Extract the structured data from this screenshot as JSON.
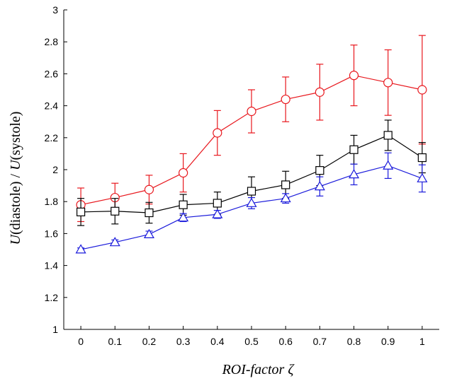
{
  "chart_data": {
    "type": "line",
    "title": "",
    "xlabel": "ROI-factor ζ",
    "ylabel": "U(diastole) / U(systole)",
    "xlim": [
      -0.05,
      1.05
    ],
    "ylim": [
      1,
      3
    ],
    "x": [
      0,
      0.1,
      0.2,
      0.3,
      0.4,
      0.5,
      0.6,
      0.7,
      0.8,
      0.9,
      1
    ],
    "x_ticks": [
      "0",
      "0.1",
      "0.2",
      "0.3",
      "0.4",
      "0.5",
      "0.6",
      "0.7",
      "0.8",
      "0.9",
      "1"
    ],
    "y_ticks": [
      "1",
      "1.2",
      "1.4",
      "1.6",
      "1.8",
      "2",
      "2.2",
      "2.4",
      "2.6",
      "2.8",
      "3"
    ],
    "y_tick_values": [
      1,
      1.2,
      1.4,
      1.6,
      1.8,
      2,
      2.2,
      2.4,
      2.6,
      2.8,
      3
    ],
    "grid": false,
    "series": [
      {
        "color": "#e8171d",
        "marker": "circle",
        "values": [
          1.78,
          1.825,
          1.875,
          1.98,
          2.23,
          2.365,
          2.44,
          2.485,
          2.59,
          2.545,
          2.5
        ],
        "error": [
          0.105,
          0.09,
          0.09,
          0.12,
          0.14,
          0.135,
          0.14,
          0.175,
          0.19,
          0.205,
          0.34
        ]
      },
      {
        "color": "#000000",
        "marker": "square",
        "values": [
          1.735,
          1.74,
          1.73,
          1.78,
          1.79,
          1.865,
          1.905,
          1.995,
          2.125,
          2.215,
          2.075
        ],
        "error": [
          0.085,
          0.08,
          0.065,
          0.065,
          0.07,
          0.09,
          0.085,
          0.095,
          0.09,
          0.095,
          0.095
        ]
      },
      {
        "color": "#1a1adb",
        "marker": "triangle",
        "values": [
          1.5,
          1.545,
          1.595,
          1.7,
          1.72,
          1.79,
          1.82,
          1.895,
          1.97,
          2.025,
          1.945
        ],
        "error": [
          0.01,
          0.015,
          0.02,
          0.025,
          0.025,
          0.035,
          0.03,
          0.06,
          0.065,
          0.08,
          0.085
        ]
      }
    ]
  }
}
